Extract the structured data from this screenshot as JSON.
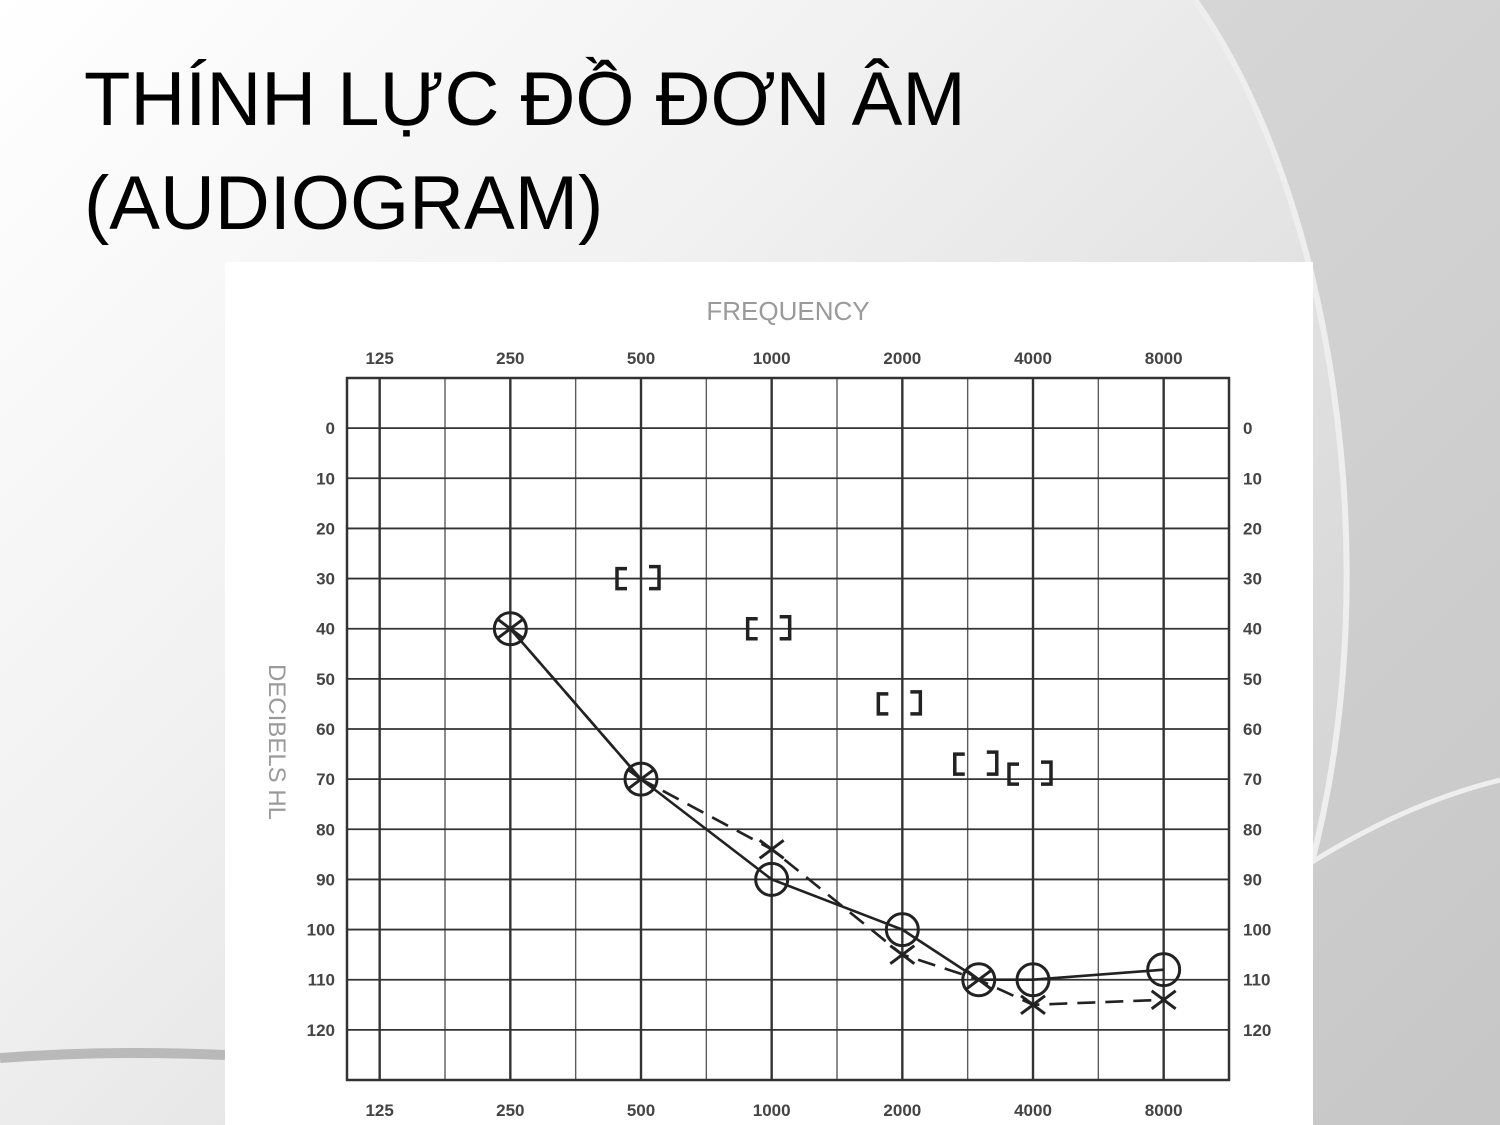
{
  "slide": {
    "title_line1": "THÍNH LỰC ĐỒ ĐƠN ÂM",
    "title_line2": "(AUDIOGRAM)"
  },
  "chart_data": {
    "type": "scatter",
    "title": "FREQUENCY",
    "ylabel": "DECIBELS HL",
    "x_scale": "log2",
    "x_ticks": [
      125,
      250,
      500,
      1000,
      2000,
      4000,
      8000
    ],
    "x_tick_labels": [
      "125",
      "250",
      "500",
      "1000",
      "2000",
      "4000",
      "8000"
    ],
    "y_ticks": [
      0,
      10,
      20,
      30,
      40,
      50,
      60,
      70,
      80,
      90,
      100,
      110,
      120
    ],
    "y_tick_labels": [
      "0",
      "10",
      "20",
      "30",
      "40",
      "50",
      "60",
      "70",
      "80",
      "90",
      "100",
      "110",
      "120"
    ],
    "y_inverted": true,
    "ylim": [
      -10,
      130
    ],
    "grid": true,
    "series": [
      {
        "marker": "circle",
        "line": "solid",
        "x": [
          250,
          500,
          1000,
          2000,
          3000,
          4000,
          8000
        ],
        "y": [
          40,
          70,
          90,
          100,
          110,
          110,
          108
        ]
      },
      {
        "marker": "x",
        "line": "dashed",
        "x": [
          250,
          500,
          1000,
          2000,
          3000,
          4000,
          8000
        ],
        "y": [
          40,
          70,
          84,
          105,
          110,
          115,
          114
        ]
      },
      {
        "marker": "bracket-pair",
        "line": "none",
        "x": [
          500,
          1000,
          2000,
          3000,
          4000
        ],
        "y": [
          30,
          40,
          55,
          67,
          69
        ]
      }
    ],
    "colors": {
      "grid": "#333333",
      "marks": "#222222",
      "label": "#9a9a9a",
      "tick": "#444444"
    }
  }
}
